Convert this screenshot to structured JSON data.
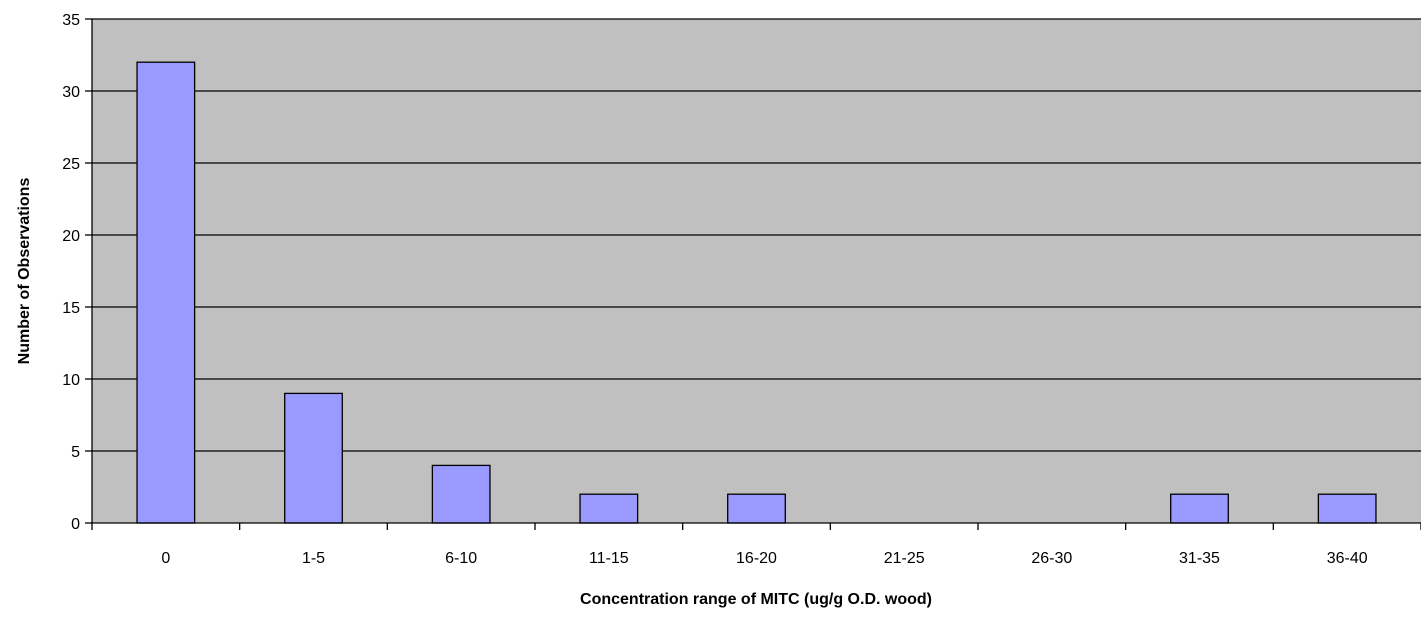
{
  "chart_data": {
    "type": "bar",
    "title": "",
    "xlabel": "Concentration range of MITC (ug/g O.D. wood)",
    "ylabel": "Number of Observations",
    "categories": [
      "0",
      "1-5",
      "6-10",
      "11-15",
      "16-20",
      "21-25",
      "26-30",
      "31-35",
      "36-40"
    ],
    "series": [
      {
        "values": [
          32,
          9,
          4,
          2,
          2,
          0,
          0,
          2,
          2
        ]
      }
    ],
    "ylim": [
      0,
      35
    ],
    "yticks": [
      0,
      5,
      10,
      15,
      20,
      25,
      30,
      35
    ],
    "grid": true,
    "legend": "none",
    "colors": {
      "plot_background": "#c0c0c0",
      "bar_fill": "#9999ff",
      "bar_stroke": "#000000",
      "gridline": "#000000"
    }
  }
}
